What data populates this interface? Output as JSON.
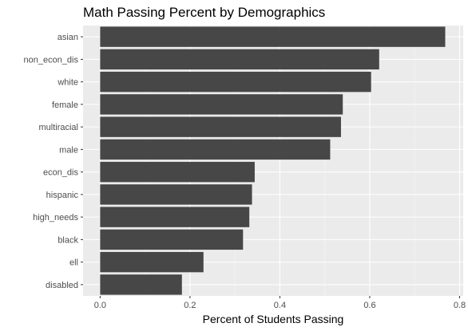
{
  "chart_data": {
    "type": "bar",
    "orientation": "horizontal",
    "title": "Math Passing Percent by Demographics",
    "xlabel": "Percent of Students Passing",
    "ylabel": "",
    "categories": [
      "asian",
      "non_econ_dis",
      "white",
      "female",
      "multiracial",
      "male",
      "econ_dis",
      "hispanic",
      "high_needs",
      "black",
      "ell",
      "disabled"
    ],
    "values": [
      0.768,
      0.621,
      0.603,
      0.54,
      0.536,
      0.512,
      0.344,
      0.338,
      0.332,
      0.318,
      0.23,
      0.182
    ],
    "xlim": [
      -0.038,
      0.808
    ],
    "x_ticks": [
      0.0,
      0.2,
      0.4,
      0.6,
      0.8
    ],
    "x_tick_labels": [
      "0.0",
      "0.2",
      "0.4",
      "0.6",
      "0.8"
    ],
    "grid": true,
    "legend": "none",
    "colors": {
      "bar": "#474747",
      "panel": "#ebebeb",
      "grid_major": "#ffffff",
      "grid_minor": "#f5f5f5"
    }
  }
}
